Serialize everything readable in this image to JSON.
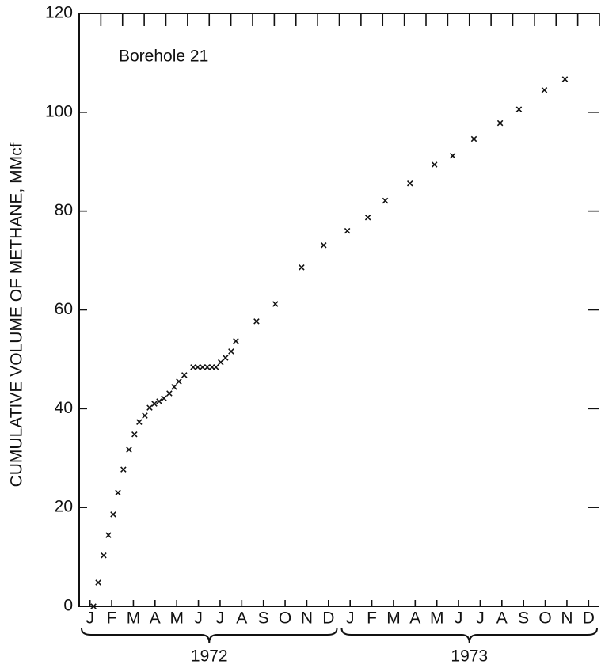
{
  "chart_data": {
    "type": "scatter",
    "y_label": "CUMULATIVE VOLUME OF METHANE, MMcf",
    "annotation": "Borehole 21",
    "x_group_labels": [
      "1972",
      "1973"
    ],
    "xlim": [
      0,
      24
    ],
    "ylim": [
      0,
      120
    ],
    "yticks": [
      0,
      20,
      40,
      60,
      80,
      100,
      120
    ],
    "xticks": [
      {
        "value": 0.5,
        "label": "J"
      },
      {
        "value": 1.5,
        "label": "F"
      },
      {
        "value": 2.5,
        "label": "M"
      },
      {
        "value": 3.5,
        "label": "A"
      },
      {
        "value": 4.5,
        "label": "M"
      },
      {
        "value": 5.5,
        "label": "J"
      },
      {
        "value": 6.5,
        "label": "J"
      },
      {
        "value": 7.5,
        "label": "A"
      },
      {
        "value": 8.5,
        "label": "S"
      },
      {
        "value": 9.5,
        "label": "O"
      },
      {
        "value": 10.5,
        "label": "N"
      },
      {
        "value": 11.5,
        "label": "D"
      },
      {
        "value": 12.5,
        "label": "J"
      },
      {
        "value": 13.5,
        "label": "F"
      },
      {
        "value": 14.5,
        "label": "M"
      },
      {
        "value": 15.5,
        "label": "A"
      },
      {
        "value": 16.5,
        "label": "M"
      },
      {
        "value": 17.5,
        "label": "J"
      },
      {
        "value": 18.5,
        "label": "J"
      },
      {
        "value": 19.5,
        "label": "A"
      },
      {
        "value": 20.5,
        "label": "S"
      },
      {
        "value": 21.5,
        "label": "O"
      },
      {
        "value": 22.5,
        "label": "N"
      },
      {
        "value": 23.5,
        "label": "D"
      }
    ],
    "color": "#111111",
    "x": [
      0.66,
      0.88,
      1.13,
      1.35,
      1.57,
      1.79,
      2.04,
      2.3,
      2.55,
      2.77,
      3.03,
      3.25,
      3.47,
      3.69,
      3.91,
      4.16,
      4.38,
      4.6,
      4.85,
      5.26,
      5.47,
      5.69,
      5.91,
      6.13,
      6.31,
      6.53,
      6.75,
      7.01,
      7.23,
      8.18,
      9.05,
      10.26,
      11.28,
      12.37,
      13.32,
      14.12,
      15.26,
      16.39,
      17.23,
      18.21,
      19.42,
      20.29,
      21.46,
      22.41
    ],
    "values": [
      0,
      4.8,
      10.3,
      14.4,
      18.6,
      23,
      27.7,
      31.7,
      34.8,
      37.3,
      38.6,
      40.2,
      41,
      41.5,
      42.1,
      43.1,
      44.4,
      45.5,
      46.8,
      48.4,
      48.4,
      48.4,
      48.4,
      48.4,
      48.4,
      49.4,
      50.3,
      51.6,
      53.7,
      57.7,
      61.2,
      68.6,
      73.1,
      76,
      78.7,
      82.1,
      85.6,
      89.4,
      91.2,
      94.6,
      97.8,
      100.6,
      104.5,
      106.7
    ]
  }
}
